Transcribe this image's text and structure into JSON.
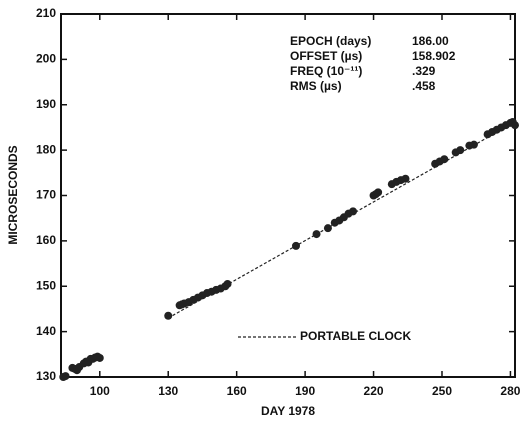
{
  "chart_data": {
    "type": "scatter",
    "xlabel": "DAY 1978",
    "ylabel": "MICROSECONDS",
    "xlim": [
      83,
      282
    ],
    "xticks": [
      100,
      130,
      160,
      190,
      220,
      250,
      280
    ],
    "ylim": [
      130,
      210
    ],
    "yticks": [
      130,
      140,
      150,
      160,
      170,
      180,
      190,
      200,
      210
    ],
    "color": "#222222",
    "x": [
      84,
      85,
      88,
      89,
      90,
      91,
      93,
      94,
      95,
      96,
      97,
      98,
      99,
      100,
      130,
      135,
      136,
      137,
      139,
      141,
      143,
      145,
      147,
      149,
      151,
      153,
      155,
      156,
      186,
      195,
      200,
      203,
      205,
      207,
      209,
      211,
      220,
      221,
      222,
      228,
      230,
      232,
      234,
      247,
      249,
      251,
      256,
      258,
      262,
      264,
      270,
      272,
      274,
      276,
      278,
      280,
      281,
      282
    ],
    "values": [
      130,
      130.2,
      132,
      131.8,
      131.5,
      132.2,
      133,
      133.4,
      133.2,
      134,
      134,
      134.3,
      134.5,
      134.2,
      143.5,
      145.8,
      146,
      146.2,
      146.5,
      147,
      147.5,
      148,
      148.5,
      148.8,
      149.2,
      149.5,
      150,
      150.5,
      158.9,
      161.5,
      162.8,
      164,
      164.5,
      165.2,
      166,
      166.5,
      170,
      170.3,
      170.7,
      172.5,
      173,
      173.4,
      173.7,
      177,
      177.5,
      178,
      179.5,
      180,
      181,
      181.2,
      183.5,
      184,
      184.5,
      185,
      185.5,
      186,
      186.2,
      185.5
    ],
    "fit_line": {
      "name": "PORTABLE CLOCK",
      "x": [
        130,
        282
      ],
      "y": [
        143,
        186.2
      ]
    },
    "stats": [
      [
        "EPOCH (days)",
        "186.00"
      ],
      [
        "OFFSET (µs)",
        "158.902"
      ],
      [
        "FREQ (10⁻¹¹)",
        ".329"
      ],
      [
        "RMS (µs)",
        ".458"
      ]
    ]
  }
}
